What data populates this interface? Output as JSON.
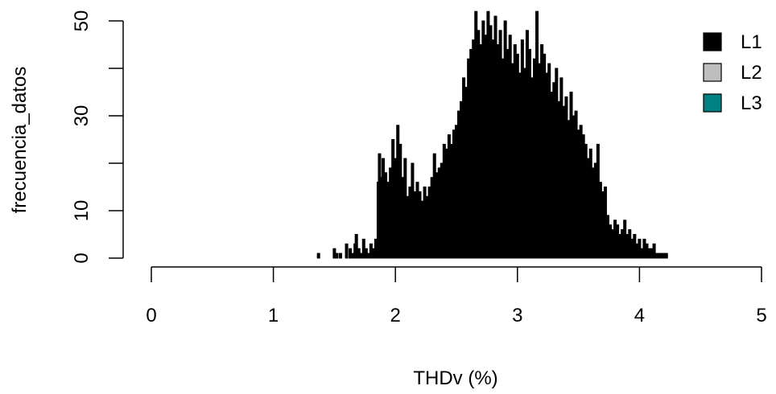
{
  "chart_data": {
    "type": "bar",
    "xlabel": "THDv (%)",
    "ylabel": "frecuencia_datos",
    "xlim": [
      0,
      5
    ],
    "ylim": [
      0,
      50
    ],
    "x_ticks": [
      "0",
      "1",
      "2",
      "3",
      "4",
      "5"
    ],
    "y_ticks": [
      "0",
      "10",
      "30",
      "50"
    ],
    "legend": {
      "position": "top-right",
      "entries": [
        "L1",
        "L2",
        "L3"
      ]
    },
    "colors": {
      "L1": "#000000",
      "L2": "#bebebe",
      "L3": "#008080"
    },
    "bin_width": 0.01,
    "series": [
      {
        "name": "L1",
        "x": [
          1.37,
          1.5,
          1.52,
          1.55,
          1.6,
          1.63,
          1.65,
          1.67,
          1.68,
          1.7,
          1.72,
          1.74,
          1.76,
          1.78,
          1.8,
          1.82,
          1.84,
          1.86,
          1.87,
          1.88,
          1.9,
          1.92,
          1.94,
          1.96,
          1.98,
          2.0,
          2.02,
          2.04,
          2.06,
          2.08,
          2.1,
          2.12,
          2.14,
          2.16,
          2.18,
          2.2,
          2.22,
          2.24,
          2.26,
          2.28,
          2.3,
          2.32,
          2.34,
          2.36,
          2.38,
          2.4,
          2.42,
          2.44,
          2.46,
          2.48,
          2.5,
          2.52,
          2.54,
          2.56,
          2.58,
          2.6,
          2.62,
          2.64,
          2.66,
          2.68,
          2.7,
          2.72,
          2.74,
          2.76,
          2.78,
          2.8,
          2.82,
          2.84,
          2.86,
          2.88,
          2.9,
          2.92,
          2.94,
          2.96,
          2.98,
          3.0,
          3.02,
          3.04,
          3.06,
          3.08,
          3.1,
          3.12,
          3.14,
          3.16,
          3.18,
          3.2,
          3.22,
          3.24,
          3.26,
          3.28,
          3.3,
          3.32,
          3.34,
          3.36,
          3.38,
          3.4,
          3.42,
          3.44,
          3.46,
          3.48,
          3.5,
          3.52,
          3.54,
          3.56,
          3.58,
          3.6,
          3.62,
          3.64,
          3.66,
          3.68,
          3.7,
          3.72,
          3.74,
          3.76,
          3.78,
          3.8,
          3.82,
          3.84,
          3.86,
          3.88,
          3.9,
          3.92,
          3.94,
          3.96,
          3.98,
          4.0,
          4.02,
          4.04,
          4.06,
          4.08,
          4.1,
          4.12,
          4.14,
          4.16,
          4.18,
          4.2,
          4.22
        ],
        "values": [
          1,
          2,
          1,
          1,
          3,
          2,
          1,
          3,
          5,
          2,
          1,
          4,
          2,
          1,
          3,
          2,
          4,
          16,
          22,
          17,
          21,
          18,
          16,
          19,
          25,
          21,
          28,
          24,
          17,
          21,
          13,
          15,
          20,
          14,
          16,
          14,
          12,
          15,
          13,
          15,
          17,
          22,
          18,
          19,
          20,
          24,
          23,
          26,
          24,
          27,
          28,
          31,
          33,
          38,
          36,
          42,
          44,
          46,
          52,
          48,
          45,
          50,
          47,
          52,
          49,
          46,
          51,
          45,
          48,
          42,
          50,
          44,
          47,
          41,
          45,
          43,
          39,
          46,
          40,
          48,
          44,
          38,
          42,
          52,
          41,
          45,
          43,
          39,
          41,
          35,
          37,
          40,
          33,
          38,
          32,
          34,
          29,
          35,
          30,
          31,
          27,
          28,
          26,
          24,
          21,
          23,
          19,
          20,
          24,
          16,
          14,
          15,
          9,
          7,
          6,
          8,
          7,
          5,
          6,
          8,
          5,
          6,
          4,
          5,
          3,
          4,
          2,
          4,
          3,
          2,
          2,
          3,
          1,
          1,
          1,
          1,
          1
        ]
      },
      {
        "name": "L2",
        "x": [],
        "values": []
      },
      {
        "name": "L3",
        "x": [],
        "values": []
      }
    ]
  }
}
